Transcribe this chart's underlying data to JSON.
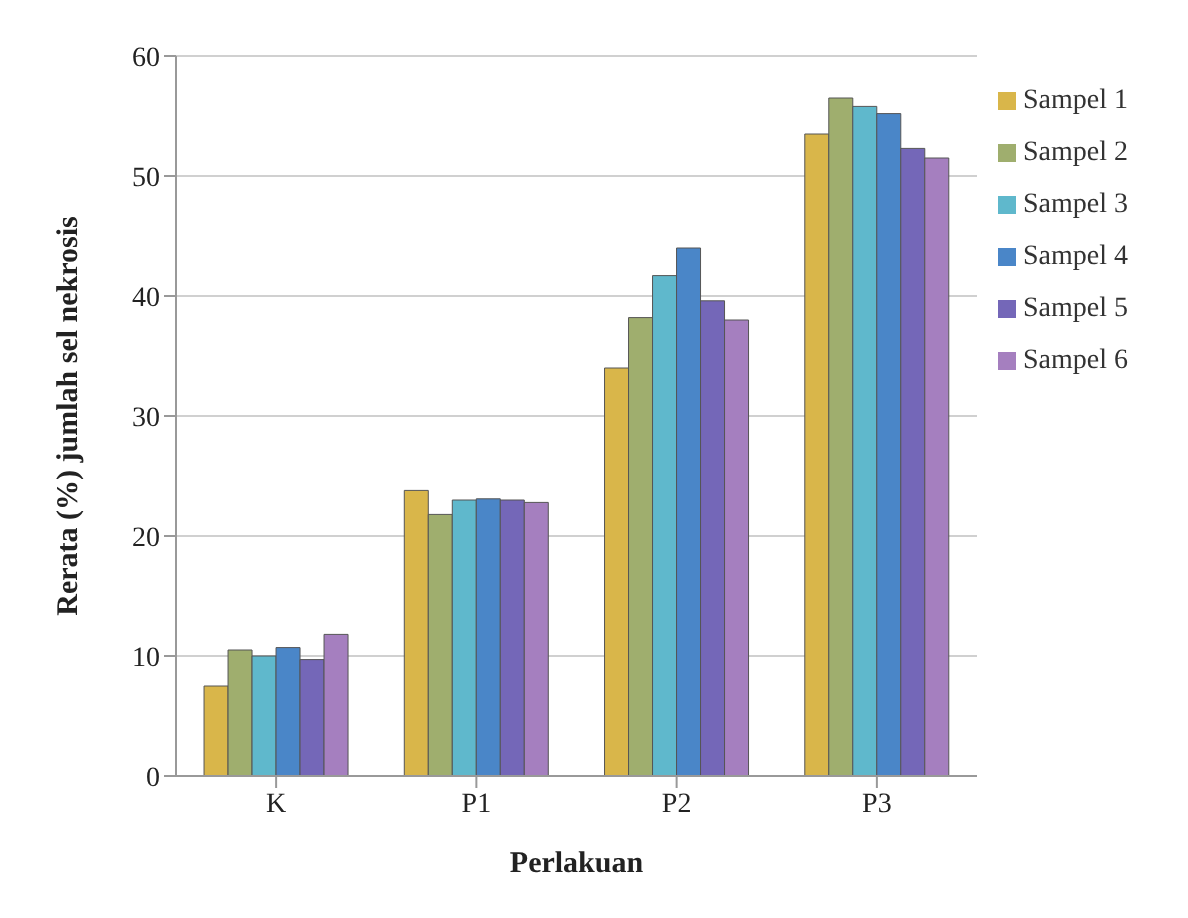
{
  "chart_data": {
    "type": "bar",
    "xlabel": "Perlakuan",
    "ylabel": "Rerata (%) jumlah sel nekrosis",
    "categories": [
      "K",
      "P1",
      "P2",
      "P3"
    ],
    "series": [
      {
        "name": "Sampel 1",
        "color": "#d9b64a",
        "values": [
          7.5,
          23.8,
          34,
          53.5
        ]
      },
      {
        "name": "Sampel 2",
        "color": "#9fae6e",
        "values": [
          10.5,
          21.8,
          38.2,
          56.5
        ]
      },
      {
        "name": "Sampel 3",
        "color": "#5fb8cc",
        "values": [
          10,
          23,
          41.7,
          55.8
        ]
      },
      {
        "name": "Sampel 4",
        "color": "#4a86c8",
        "values": [
          10.7,
          23.1,
          44,
          55.2
        ]
      },
      {
        "name": "Sampel 5",
        "color": "#7467b8",
        "values": [
          9.7,
          23,
          39.6,
          52.3
        ]
      },
      {
        "name": "Sampel 6",
        "color": "#a57fbf",
        "values": [
          11.8,
          22.8,
          38,
          51.5
        ]
      }
    ],
    "ylim": [
      0,
      60
    ],
    "yticks": [
      0,
      10,
      20,
      30,
      40,
      50,
      60
    ],
    "grid": "y",
    "legend": "right"
  }
}
